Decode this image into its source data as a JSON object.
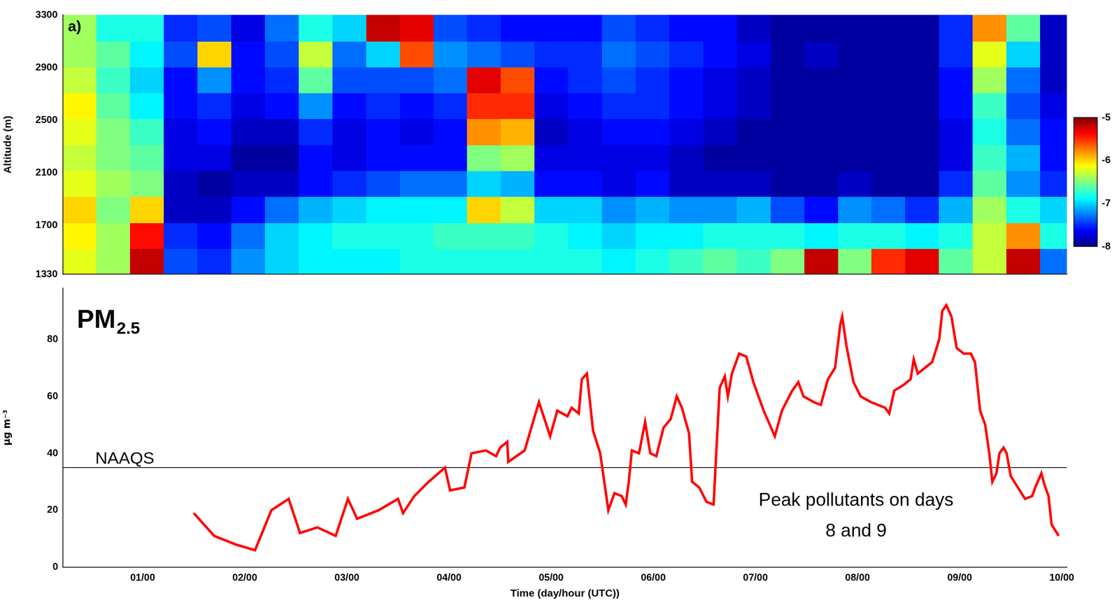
{
  "chart_data": [
    {
      "type": "heatmap",
      "panel_label": "a)",
      "y_label": "Altitude (m)",
      "xlim": [
        0.22,
        10.05
      ],
      "ylim": [
        1330,
        3300
      ],
      "yticks": [
        1330,
        1700,
        2100,
        2500,
        2900,
        3300
      ],
      "tick_labels": "y",
      "grid": false,
      "x_edges": [
        0.22,
        0.55,
        0.88,
        1.21,
        1.54,
        1.87,
        2.2,
        2.53,
        2.86,
        3.19,
        3.52,
        3.85,
        4.18,
        4.51,
        4.84,
        5.17,
        5.5,
        5.83,
        6.16,
        6.49,
        6.82,
        7.15,
        7.48,
        7.81,
        8.14,
        8.47,
        8.8,
        9.13,
        9.46,
        9.79,
        10.05
      ],
      "y_edges": [
        1330,
        1527,
        1724,
        1921,
        2118,
        2315,
        2512,
        2709,
        2906,
        3103,
        3300
      ],
      "values": [
        [
          -6.2,
          -6.1,
          -6.0,
          -6.2,
          -6.3,
          -6.2,
          -6.1,
          -6.3,
          -6.4,
          -6.4
        ],
        [
          -6.4,
          -6.4,
          -6.5,
          -6.4,
          -6.5,
          -6.5,
          -6.6,
          -6.7,
          -6.6,
          -6.8
        ],
        [
          -5.2,
          -5.4,
          -6.0,
          -6.5,
          -6.6,
          -6.7,
          -6.9,
          -7.0,
          -6.9,
          -6.8
        ],
        [
          -7.4,
          -7.5,
          -7.8,
          -7.8,
          -7.7,
          -7.7,
          -7.6,
          -7.6,
          -7.4,
          -7.5
        ],
        [
          -7.5,
          -7.6,
          -7.8,
          -7.9,
          -7.7,
          -7.6,
          -7.5,
          -7.2,
          -6.0,
          -7.4
        ],
        [
          -7.2,
          -7.3,
          -7.6,
          -7.8,
          -7.9,
          -7.8,
          -7.7,
          -7.6,
          -7.6,
          -7.7
        ],
        [
          -7.0,
          -7.0,
          -7.3,
          -7.8,
          -7.9,
          -7.8,
          -7.6,
          -7.5,
          -7.4,
          -7.3
        ],
        [
          -6.9,
          -6.9,
          -7.1,
          -7.6,
          -7.6,
          -7.5,
          -7.2,
          -6.6,
          -6.3,
          -6.8
        ],
        [
          -6.9,
          -6.8,
          -7.0,
          -7.5,
          -7.7,
          -7.7,
          -7.6,
          -7.4,
          -7.3,
          -7.0
        ],
        [
          -6.9,
          -6.8,
          -6.9,
          -7.4,
          -7.6,
          -7.6,
          -7.5,
          -7.4,
          -7.0,
          -5.2
        ],
        [
          -6.8,
          -6.8,
          -6.9,
          -7.3,
          -7.6,
          -7.7,
          -7.6,
          -7.4,
          -5.6,
          -5.3
        ],
        [
          -6.8,
          -6.7,
          -6.9,
          -7.3,
          -7.6,
          -7.6,
          -7.5,
          -7.3,
          -7.2,
          -7.4
        ],
        [
          -6.8,
          -6.7,
          -6.0,
          -7.0,
          -6.5,
          -5.8,
          -5.5,
          -5.3,
          -7.3,
          -7.5
        ],
        [
          -6.8,
          -6.7,
          -6.3,
          -7.1,
          -6.4,
          -5.9,
          -5.5,
          -5.6,
          -7.4,
          -7.6
        ],
        [
          -6.8,
          -6.8,
          -7.0,
          -7.6,
          -7.7,
          -7.8,
          -7.7,
          -7.6,
          -7.5,
          -7.6
        ],
        [
          -6.8,
          -6.9,
          -7.0,
          -7.6,
          -7.7,
          -7.7,
          -7.6,
          -7.5,
          -7.5,
          -7.6
        ],
        [
          -6.9,
          -7.0,
          -7.2,
          -7.7,
          -7.7,
          -7.6,
          -7.5,
          -7.4,
          -7.3,
          -7.4
        ],
        [
          -6.8,
          -6.9,
          -7.1,
          -7.6,
          -7.7,
          -7.6,
          -7.5,
          -7.5,
          -7.4,
          -7.5
        ],
        [
          -6.7,
          -6.9,
          -7.2,
          -7.8,
          -7.8,
          -7.7,
          -7.6,
          -7.6,
          -7.5,
          -7.6
        ],
        [
          -6.6,
          -6.8,
          -7.2,
          -7.8,
          -7.9,
          -7.8,
          -7.7,
          -7.7,
          -7.6,
          -7.6
        ],
        [
          -6.7,
          -6.8,
          -7.1,
          -7.8,
          -7.9,
          -7.9,
          -7.8,
          -7.8,
          -7.7,
          -7.8
        ],
        [
          -6.5,
          -6.8,
          -7.4,
          -7.9,
          -7.9,
          -7.9,
          -7.9,
          -7.9,
          -7.9,
          -7.9
        ],
        [
          -5.2,
          -6.9,
          -7.6,
          -7.9,
          -7.9,
          -7.9,
          -7.9,
          -7.9,
          -7.8,
          -7.9
        ],
        [
          -6.5,
          -6.8,
          -7.2,
          -7.8,
          -7.9,
          -7.9,
          -7.9,
          -7.9,
          -7.9,
          -7.9
        ],
        [
          -5.5,
          -6.8,
          -7.3,
          -7.9,
          -7.9,
          -7.9,
          -7.9,
          -7.9,
          -7.9,
          -7.9
        ],
        [
          -5.3,
          -6.9,
          -7.5,
          -7.9,
          -7.9,
          -7.9,
          -7.9,
          -7.9,
          -7.9,
          -7.9
        ],
        [
          -6.6,
          -6.8,
          -7.1,
          -7.5,
          -7.7,
          -7.7,
          -7.6,
          -7.6,
          -7.5,
          -7.5
        ],
        [
          -6.3,
          -6.3,
          -6.4,
          -6.6,
          -6.7,
          -6.8,
          -6.7,
          -6.4,
          -6.2,
          -5.8
        ],
        [
          -5.2,
          -5.8,
          -6.8,
          -7.2,
          -7.1,
          -7.3,
          -7.4,
          -7.3,
          -7.0,
          -6.6
        ],
        [
          -7.3,
          -6.8,
          -7.0,
          -7.5,
          -7.6,
          -7.6,
          -7.7,
          -7.8,
          -7.8,
          -7.8
        ]
      ],
      "colorbar": {
        "range": [
          -8,
          -5
        ],
        "ticks": [
          -8,
          -7,
          -6,
          -5
        ]
      }
    },
    {
      "type": "line",
      "title": "PM2.5",
      "x_label": "Time (day/hour (UTC))",
      "y_label": "µg m⁻³",
      "color": "#ff0000",
      "grid": false,
      "xlim": [
        0.22,
        10.05
      ],
      "xticks": [
        {
          "value": 1,
          "label": "01/00"
        },
        {
          "value": 2,
          "label": "02/00"
        },
        {
          "value": 3,
          "label": "03/00"
        },
        {
          "value": 4,
          "label": "04/00"
        },
        {
          "value": 5,
          "label": "05/00"
        },
        {
          "value": 6,
          "label": "06/00"
        },
        {
          "value": 7,
          "label": "07/00"
        },
        {
          "value": 8,
          "label": "08/00"
        },
        {
          "value": 9,
          "label": "09/00"
        },
        {
          "value": 10,
          "label": "10/00"
        }
      ],
      "ylim": [
        0,
        98
      ],
      "yticks": [
        0,
        20,
        40,
        60,
        80
      ],
      "reference_line": {
        "value": 35,
        "label": "NAAQS"
      },
      "annotations": [
        "Peak pollutants on days 8 and 9"
      ],
      "x": [
        1.5,
        1.7,
        1.91,
        2.1,
        2.26,
        2.43,
        2.54,
        2.71,
        2.89,
        3.01,
        3.1,
        3.31,
        3.5,
        3.55,
        3.66,
        3.8,
        3.96,
        4.01,
        4.15,
        4.22,
        4.36,
        4.46,
        4.5,
        4.57,
        4.58,
        4.74,
        4.88,
        4.99,
        5.06,
        5.16,
        5.2,
        5.27,
        5.3,
        5.35,
        5.41,
        5.48,
        5.56,
        5.62,
        5.69,
        5.73,
        5.76,
        5.79,
        5.86,
        5.92,
        5.97,
        6.03,
        6.1,
        6.17,
        6.23,
        6.28,
        6.35,
        6.38,
        6.45,
        6.52,
        6.59,
        6.65,
        6.7,
        6.73,
        6.77,
        6.84,
        6.91,
        6.98,
        7.08,
        7.19,
        7.26,
        7.36,
        7.42,
        7.47,
        7.57,
        7.64,
        7.71,
        7.78,
        7.83,
        7.85,
        7.89,
        7.96,
        8.03,
        8.13,
        8.27,
        8.31,
        8.36,
        8.45,
        8.52,
        8.55,
        8.59,
        8.66,
        8.73,
        8.8,
        8.83,
        8.87,
        8.92,
        8.97,
        9.04,
        9.11,
        9.15,
        9.2,
        9.25,
        9.29,
        9.32,
        9.36,
        9.39,
        9.43,
        9.46,
        9.5,
        9.57,
        9.64,
        9.71,
        9.74,
        9.8,
        9.83,
        9.87,
        9.9,
        9.97
      ],
      "values": [
        19,
        11,
        8,
        6,
        20,
        24,
        12,
        14,
        11,
        24,
        17,
        20,
        24,
        19,
        25,
        30,
        35,
        27,
        28,
        40,
        41,
        39,
        42,
        44,
        37,
        41,
        58,
        46,
        55,
        53,
        56,
        54,
        66,
        68,
        48,
        40,
        20,
        26,
        25,
        22,
        30,
        41,
        40,
        51,
        40,
        39,
        49,
        52,
        60,
        56,
        47,
        30,
        28,
        23,
        22,
        63,
        67,
        60,
        68,
        75,
        74,
        65,
        55,
        46,
        55,
        62,
        65,
        60,
        58,
        57,
        66,
        70,
        85,
        88,
        78,
        65,
        60,
        58,
        56,
        54,
        62,
        64,
        66,
        73,
        68,
        70,
        72,
        80,
        90,
        92,
        88,
        77,
        75,
        75,
        72,
        55,
        50,
        40,
        30,
        33,
        40,
        42,
        40,
        32,
        28,
        24,
        25,
        28,
        33,
        29,
        25,
        15,
        11
      ]
    }
  ]
}
